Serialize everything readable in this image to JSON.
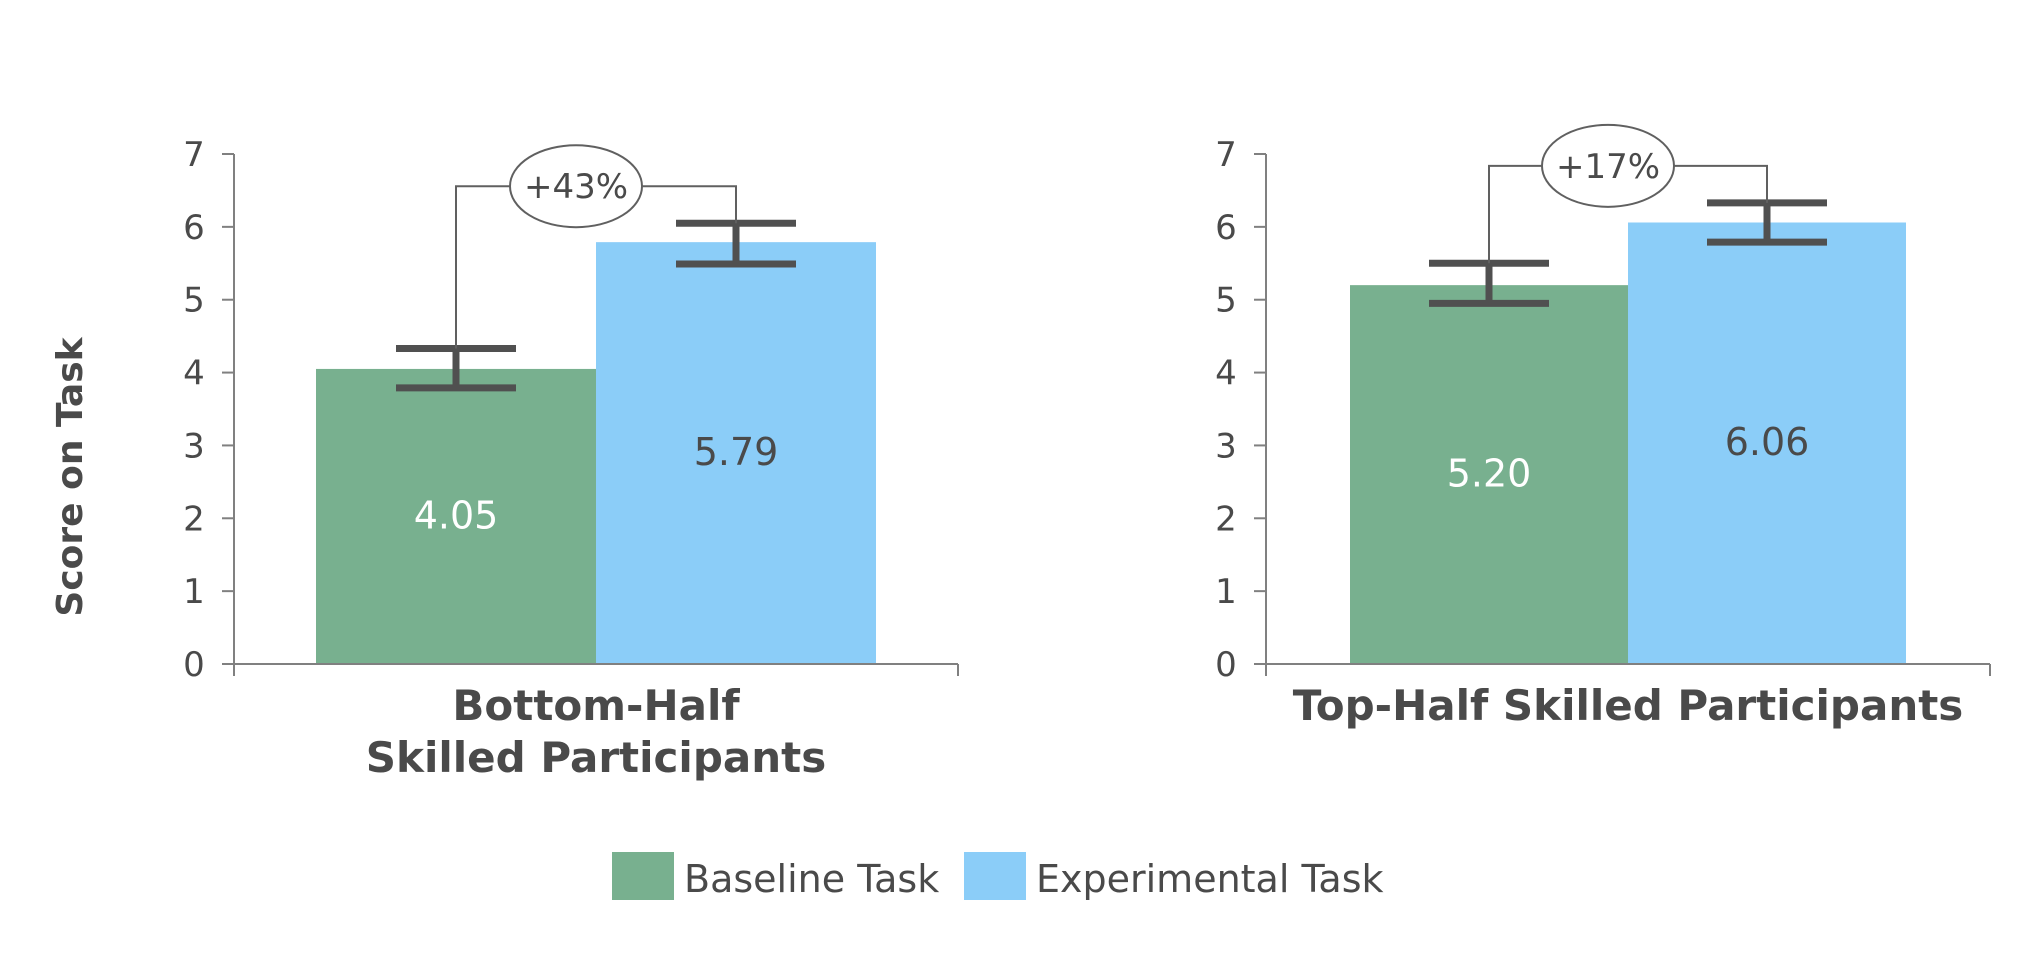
{
  "chart_data": {
    "type": "bar",
    "ylabel": "Score on Task",
    "ylim": [
      0,
      7
    ],
    "yticks": [
      "0",
      "1",
      "2",
      "3",
      "4",
      "5",
      "6",
      "7"
    ],
    "grid": false,
    "legend_position": "bottom-center",
    "colors": {
      "Baseline Task": "#78b08f",
      "Experimental Task": "#8bcdf8",
      "axis": "#808080",
      "text": "#4a4a4a",
      "error_bar": "#505050"
    },
    "series_names": [
      "Baseline Task",
      "Experimental Task"
    ],
    "panels": [
      {
        "category": "Bottom-Half Skilled Participants",
        "category_lines": [
          "Bottom-Half",
          "Skilled Participants"
        ],
        "values": [
          4.05,
          5.79
        ],
        "value_labels": [
          "4.05",
          "5.79"
        ],
        "error_bars": [
          [
            3.79,
            4.33
          ],
          [
            5.49,
            6.05
          ]
        ],
        "annotation": "+43%"
      },
      {
        "category": "Top-Half Skilled Participants",
        "category_lines": [
          "Top-Half Skilled Participants"
        ],
        "values": [
          5.2,
          6.06
        ],
        "value_labels": [
          "5.20",
          "6.06"
        ],
        "error_bars": [
          [
            4.95,
            5.5
          ],
          [
            5.79,
            6.33
          ]
        ],
        "annotation": "+17%"
      }
    ]
  }
}
